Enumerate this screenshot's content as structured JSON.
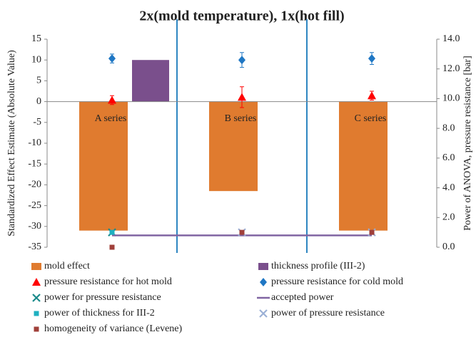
{
  "chart_data": {
    "type": "combo",
    "title": "2x(mold temperature), 1x(hot fill)",
    "y_label": "Standardized Effect Estimate (Absolute Value)",
    "y2_label": "Power of ANOVA, pressure resistance [bar]",
    "categories": [
      "A series",
      "B series",
      "C series"
    ],
    "ylim": [
      -35,
      15
    ],
    "yticks": [
      -35,
      -30,
      -25,
      -20,
      -15,
      -10,
      -5,
      0,
      5,
      10,
      15
    ],
    "y2lim": [
      0,
      14
    ],
    "y2ticks": [
      {
        "value": 0,
        "label": "0.0"
      },
      {
        "value": 2,
        "label": "2.0"
      },
      {
        "value": 4,
        "label": "4.0"
      },
      {
        "value": 6,
        "label": "6.0"
      },
      {
        "value": 8,
        "label": "8.0"
      },
      {
        "value": 10,
        "label": "10.0"
      },
      {
        "value": 12,
        "label": "12.0"
      },
      {
        "value": 14,
        "label": "14.0"
      }
    ],
    "series": [
      {
        "name": "mold effect",
        "type": "bar",
        "color": "#e07b2f",
        "values": [
          -31,
          -21.5,
          -31
        ]
      },
      {
        "name": "thickness profile (III-2)",
        "type": "bar",
        "color": "#7a4f8c",
        "values": [
          10,
          null,
          null
        ]
      },
      {
        "name": "pressure resistance for hot mold",
        "type": "scatter",
        "marker": "triangle",
        "axis": "y2",
        "color": "#ff0000",
        "values": [
          9.9,
          10.1,
          10.2
        ],
        "errors": [
          0.3,
          0.7,
          0.3
        ]
      },
      {
        "name": "pressure resistance for cold mold",
        "type": "scatter",
        "marker": "diamond",
        "axis": "y2",
        "color": "#1f77c4",
        "values": [
          12.7,
          12.6,
          12.7
        ],
        "errors": [
          0.3,
          0.5,
          0.4
        ]
      },
      {
        "name": "power for pressure resistance",
        "type": "scatter",
        "marker": "x",
        "axis": "y2",
        "color": "#1a8a8a",
        "values": [
          1.0,
          null,
          null
        ]
      },
      {
        "name": "accepted power",
        "type": "line",
        "axis": "y2",
        "color": "#8064a2",
        "values": [
          0.8,
          0.8,
          0.8
        ]
      },
      {
        "name": "power of thickness for III-2",
        "type": "scatter",
        "marker": "square",
        "axis": "y2",
        "color": "#1fb0c0",
        "values": [
          1.0,
          null,
          null
        ]
      },
      {
        "name": "power of pressure resistance",
        "type": "scatter",
        "marker": "x",
        "axis": "y2",
        "color": "#9bb0d6",
        "values": [
          null,
          1.0,
          1.0
        ]
      },
      {
        "name": "homogeneity of variance (Levene)",
        "type": "scatter",
        "marker": "square",
        "axis": "y2",
        "color": "#a0403a",
        "values": [
          0.0,
          1.0,
          1.0
        ]
      }
    ]
  }
}
